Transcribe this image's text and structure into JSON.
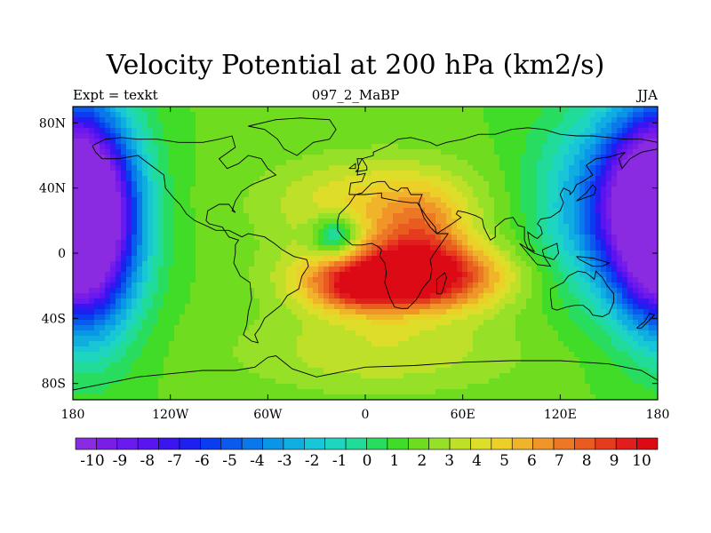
{
  "title": "Velocity Potential at 200 hPa (km2/s)",
  "left_subtitle": "Expt = texkt",
  "center_subtitle": "097_2_MaBP",
  "right_subtitle": "JJA",
  "chart_data": {
    "type": "heatmap",
    "title": "Velocity Potential at 200 hPa (km2/s)",
    "x_ticks": [
      {
        "value": -180,
        "label": "180"
      },
      {
        "value": -120,
        "label": "120W"
      },
      {
        "value": -60,
        "label": "60W"
      },
      {
        "value": 0,
        "label": "0"
      },
      {
        "value": 60,
        "label": "60E"
      },
      {
        "value": 120,
        "label": "120E"
      },
      {
        "value": 180,
        "label": "180"
      }
    ],
    "y_ticks": [
      {
        "value": 80,
        "label": "80N"
      },
      {
        "value": 40,
        "label": "40N"
      },
      {
        "value": 0,
        "label": "0"
      },
      {
        "value": -40,
        "label": "40S"
      },
      {
        "value": -80,
        "label": "80S"
      }
    ],
    "xlim": [
      -180,
      180
    ],
    "ylim": [
      -90,
      90
    ],
    "levels": [
      -10,
      -9,
      -8,
      -7,
      -6,
      -5,
      -4,
      -3,
      -2,
      -1,
      0,
      1,
      2,
      3,
      4,
      5,
      6,
      7,
      8,
      9,
      10
    ],
    "level_labels": [
      "-10",
      "-9",
      "-8",
      "-7",
      "-6",
      "-5",
      "-4",
      "-3",
      "-2",
      "-1",
      "0",
      "1",
      "2",
      "3",
      "4",
      "5",
      "6",
      "7",
      "8",
      "9",
      "10"
    ],
    "colorbar_colors": [
      "#8a2be2",
      "#7a1ee6",
      "#6a1aee",
      "#5a14f0",
      "#3c14f0",
      "#1e20f0",
      "#0a3cf0",
      "#0a5aee",
      "#0a78ea",
      "#0a96e6",
      "#10aee0",
      "#18c6d8",
      "#1ed6c0",
      "#20dc98",
      "#28dc60",
      "#40dc28",
      "#70dc20",
      "#96e028",
      "#bee028",
      "#dede2a",
      "#ecd028",
      "#f0b42a",
      "#f09628",
      "#ec7826",
      "#e85c20",
      "#e43c1c",
      "#e01e1e",
      "#dc0a14"
    ],
    "field_centers": [
      {
        "lon": -168,
        "lat": 20,
        "amp": -10.5,
        "sx": 22,
        "sy": 45
      },
      {
        "lon": 177,
        "lat": 25,
        "amp": -9.0,
        "sx": 20,
        "sy": 40
      },
      {
        "lon": 148,
        "lat": 30,
        "amp": -5.0,
        "sx": 30,
        "sy": 40
      },
      {
        "lon": 25,
        "lat": -15,
        "amp": 9.5,
        "sx": 40,
        "sy": 14
      },
      {
        "lon": -5,
        "lat": -22,
        "amp": 3.0,
        "sx": 20,
        "sy": 10
      },
      {
        "lon": 35,
        "lat": 10,
        "amp": 3.5,
        "sx": 20,
        "sy": 20
      },
      {
        "lon": -18,
        "lat": 10,
        "amp": -4.5,
        "sx": 10,
        "sy": 9
      },
      {
        "lon": 5,
        "lat": 30,
        "amp": 3.0,
        "sx": 45,
        "sy": 20
      },
      {
        "lon": 10,
        "lat": -60,
        "amp": 2.0,
        "sx": 60,
        "sy": 18
      }
    ],
    "field_base": 1.5,
    "coastlines": [
      [
        [
          -168,
          66
        ],
        [
          -160,
          70
        ],
        [
          -150,
          71
        ],
        [
          -140,
          70
        ],
        [
          -128,
          70
        ],
        [
          -115,
          68
        ],
        [
          -100,
          68
        ],
        [
          -90,
          70
        ],
        [
          -82,
          72
        ],
        [
          -80,
          65
        ],
        [
          -90,
          58
        ],
        [
          -85,
          52
        ],
        [
          -78,
          55
        ],
        [
          -72,
          60
        ],
        [
          -64,
          58
        ],
        [
          -60,
          52
        ],
        [
          -55,
          48
        ],
        [
          -65,
          44
        ],
        [
          -70,
          42
        ],
        [
          -76,
          38
        ],
        [
          -80,
          32
        ],
        [
          -82,
          26
        ],
        [
          -80,
          25
        ],
        [
          -84,
          30
        ],
        [
          -90,
          30
        ],
        [
          -97,
          26
        ],
        [
          -98,
          20
        ],
        [
          -96,
          18
        ],
        [
          -88,
          16
        ],
        [
          -84,
          10
        ],
        [
          -78,
          8
        ],
        [
          -80,
          5
        ],
        [
          -80,
          0
        ],
        [
          -81,
          -6
        ],
        [
          -77,
          -14
        ],
        [
          -71,
          -18
        ],
        [
          -70,
          -28
        ],
        [
          -72,
          -36
        ],
        [
          -73,
          -44
        ],
        [
          -75,
          -50
        ],
        [
          -70,
          -54
        ],
        [
          -66,
          -55
        ],
        [
          -68,
          -50
        ],
        [
          -65,
          -46
        ],
        [
          -62,
          -40
        ],
        [
          -57,
          -36
        ],
        [
          -52,
          -32
        ],
        [
          -48,
          -26
        ],
        [
          -41,
          -22
        ],
        [
          -39,
          -14
        ],
        [
          -35,
          -8
        ],
        [
          -36,
          -4
        ],
        [
          -44,
          -2
        ],
        [
          -51,
          2
        ],
        [
          -56,
          6
        ],
        [
          -62,
          10
        ],
        [
          -72,
          12
        ],
        [
          -76,
          10
        ],
        [
          -84,
          14
        ],
        [
          -88,
          14
        ],
        [
          -92,
          14
        ],
        [
          -96,
          16
        ],
        [
          -105,
          20
        ],
        [
          -110,
          24
        ],
        [
          -114,
          30
        ],
        [
          -118,
          34
        ],
        [
          -123,
          40
        ],
        [
          -124,
          48
        ],
        [
          -132,
          54
        ],
        [
          -140,
          60
        ],
        [
          -152,
          58
        ],
        [
          -162,
          58
        ],
        [
          -166,
          62
        ],
        [
          -168,
          66
        ]
      ],
      [
        [
          -55,
          82
        ],
        [
          -40,
          83
        ],
        [
          -22,
          82
        ],
        [
          -18,
          76
        ],
        [
          -22,
          70
        ],
        [
          -32,
          68
        ],
        [
          -42,
          60
        ],
        [
          -50,
          64
        ],
        [
          -54,
          70
        ],
        [
          -62,
          76
        ],
        [
          -72,
          78
        ],
        [
          -55,
          82
        ]
      ],
      [
        [
          -10,
          36
        ],
        [
          -9,
          43
        ],
        [
          -2,
          44
        ],
        [
          0,
          49
        ],
        [
          -5,
          48
        ],
        [
          -4,
          54
        ],
        [
          -2,
          58
        ],
        [
          5,
          60
        ],
        [
          5,
          62
        ],
        [
          14,
          66
        ],
        [
          20,
          70
        ],
        [
          28,
          71
        ],
        [
          40,
          68
        ],
        [
          44,
          66
        ],
        [
          50,
          68
        ],
        [
          60,
          70
        ],
        [
          70,
          73
        ],
        [
          80,
          73
        ],
        [
          90,
          76
        ],
        [
          100,
          77
        ],
        [
          110,
          76
        ],
        [
          120,
          73
        ],
        [
          130,
          72
        ],
        [
          140,
          72
        ],
        [
          150,
          71
        ],
        [
          160,
          70
        ],
        [
          170,
          70
        ],
        [
          180,
          68
        ]
      ],
      [
        [
          180,
          64
        ],
        [
          170,
          62
        ],
        [
          163,
          58
        ],
        [
          158,
          52
        ],
        [
          156,
          58
        ],
        [
          160,
          62
        ],
        [
          150,
          59
        ],
        [
          142,
          58
        ],
        [
          136,
          54
        ],
        [
          140,
          48
        ],
        [
          134,
          44
        ],
        [
          130,
          42
        ],
        [
          128,
          38
        ],
        [
          126,
          36
        ],
        [
          126,
          38
        ],
        [
          122,
          40
        ],
        [
          120,
          36
        ],
        [
          122,
          31
        ],
        [
          120,
          26
        ],
        [
          114,
          22
        ],
        [
          108,
          21
        ],
        [
          106,
          18
        ],
        [
          108,
          16
        ],
        [
          109,
          12
        ],
        [
          106,
          9
        ],
        [
          104,
          10
        ],
        [
          100,
          13
        ],
        [
          101,
          6
        ],
        [
          104,
          1
        ],
        [
          100,
          3
        ],
        [
          98,
          8
        ],
        [
          98,
          16
        ],
        [
          94,
          17
        ],
        [
          91,
          22
        ],
        [
          86,
          21
        ],
        [
          80,
          16
        ],
        [
          80,
          10
        ],
        [
          77,
          8
        ],
        [
          73,
          16
        ],
        [
          72,
          21
        ],
        [
          68,
          23
        ],
        [
          62,
          25
        ],
        [
          57,
          26
        ],
        [
          56,
          24
        ],
        [
          59,
          22
        ],
        [
          52,
          17
        ],
        [
          44,
          12
        ],
        [
          43,
          16
        ],
        [
          38,
          22
        ],
        [
          34,
          28
        ],
        [
          33,
          31
        ],
        [
          35,
          36
        ],
        [
          28,
          36
        ],
        [
          26,
          40
        ],
        [
          22,
          40
        ],
        [
          20,
          38
        ],
        [
          15,
          40
        ],
        [
          12,
          44
        ],
        [
          8,
          44
        ],
        [
          4,
          43
        ],
        [
          -2,
          37
        ],
        [
          -6,
          36
        ],
        [
          -10,
          36
        ]
      ],
      [
        [
          -6,
          36
        ],
        [
          -10,
          30
        ],
        [
          -16,
          24
        ],
        [
          -17,
          20
        ],
        [
          -17,
          14
        ],
        [
          -14,
          10
        ],
        [
          -8,
          5
        ],
        [
          -2,
          5
        ],
        [
          4,
          6
        ],
        [
          8,
          4
        ],
        [
          10,
          2
        ],
        [
          9,
          -2
        ],
        [
          12,
          -6
        ],
        [
          13,
          -12
        ],
        [
          12,
          -18
        ],
        [
          15,
          -27
        ],
        [
          18,
          -33
        ],
        [
          22,
          -34
        ],
        [
          26,
          -34
        ],
        [
          31,
          -29
        ],
        [
          33,
          -26
        ],
        [
          35,
          -22
        ],
        [
          40,
          -16
        ],
        [
          41,
          -10
        ],
        [
          40,
          -4
        ],
        [
          44,
          2
        ],
        [
          51,
          12
        ],
        [
          44,
          12
        ],
        [
          40,
          16
        ],
        [
          36,
          22
        ],
        [
          34,
          28
        ],
        [
          32,
          31
        ],
        [
          28,
          31
        ],
        [
          20,
          32
        ],
        [
          10,
          34
        ],
        [
          10,
          37
        ],
        [
          0,
          36
        ],
        [
          -6,
          36
        ]
      ],
      [
        [
          44,
          -25
        ],
        [
          47,
          -25
        ],
        [
          50,
          -15
        ],
        [
          49,
          -12
        ],
        [
          44,
          -16
        ],
        [
          44,
          -25
        ]
      ],
      [
        [
          114,
          -22
        ],
        [
          114,
          -26
        ],
        [
          115,
          -34
        ],
        [
          118,
          -35
        ],
        [
          124,
          -33
        ],
        [
          129,
          -32
        ],
        [
          134,
          -32
        ],
        [
          138,
          -35
        ],
        [
          140,
          -38
        ],
        [
          146,
          -39
        ],
        [
          150,
          -37
        ],
        [
          153,
          -30
        ],
        [
          153,
          -25
        ],
        [
          149,
          -20
        ],
        [
          146,
          -15
        ],
        [
          142,
          -11
        ],
        [
          141,
          -16
        ],
        [
          136,
          -12
        ],
        [
          131,
          -11
        ],
        [
          125,
          -14
        ],
        [
          122,
          -18
        ],
        [
          114,
          -22
        ]
      ],
      [
        [
          167,
          -46
        ],
        [
          172,
          -42
        ],
        [
          175,
          -37
        ],
        [
          178,
          -38
        ],
        [
          174,
          -42
        ],
        [
          170,
          -46
        ],
        [
          167,
          -46
        ]
      ],
      [
        [
          -60,
          -64
        ],
        [
          -55,
          -63
        ],
        [
          -45,
          -71
        ],
        [
          -30,
          -76
        ],
        [
          0,
          -70
        ],
        [
          30,
          -69
        ],
        [
          60,
          -67
        ],
        [
          90,
          -66
        ],
        [
          120,
          -66
        ],
        [
          150,
          -68
        ],
        [
          170,
          -72
        ],
        [
          180,
          -78
        ]
      ],
      [
        [
          -180,
          -84
        ],
        [
          -160,
          -80
        ],
        [
          -140,
          -76
        ],
        [
          -120,
          -74
        ],
        [
          -100,
          -72
        ],
        [
          -80,
          -72
        ],
        [
          -68,
          -70
        ],
        [
          -60,
          -64
        ]
      ],
      [
        [
          130,
          -2
        ],
        [
          140,
          -3
        ],
        [
          150,
          -6
        ],
        [
          146,
          -8
        ],
        [
          140,
          -8
        ],
        [
          132,
          -4
        ],
        [
          130,
          -2
        ]
      ],
      [
        [
          95,
          6
        ],
        [
          105,
          -6
        ],
        [
          106,
          -7
        ],
        [
          114,
          -8
        ],
        [
          110,
          -2
        ],
        [
          104,
          0
        ],
        [
          95,
          6
        ]
      ],
      [
        [
          109,
          2
        ],
        [
          118,
          6
        ],
        [
          119,
          0
        ],
        [
          116,
          -4
        ],
        [
          110,
          -2
        ],
        [
          109,
          2
        ]
      ],
      [
        [
          -6,
          50
        ],
        [
          -4,
          52
        ],
        [
          -5,
          58
        ],
        [
          -2,
          58
        ],
        [
          1,
          53
        ],
        [
          1,
          51
        ],
        [
          -6,
          50
        ]
      ],
      [
        [
          -10,
          52
        ],
        [
          -6,
          55
        ],
        [
          -6,
          52
        ],
        [
          -10,
          52
        ]
      ],
      [
        [
          130,
          32
        ],
        [
          135,
          34
        ],
        [
          141,
          36
        ],
        [
          142,
          40
        ],
        [
          140,
          42
        ],
        [
          136,
          37
        ],
        [
          130,
          32
        ]
      ]
    ]
  }
}
